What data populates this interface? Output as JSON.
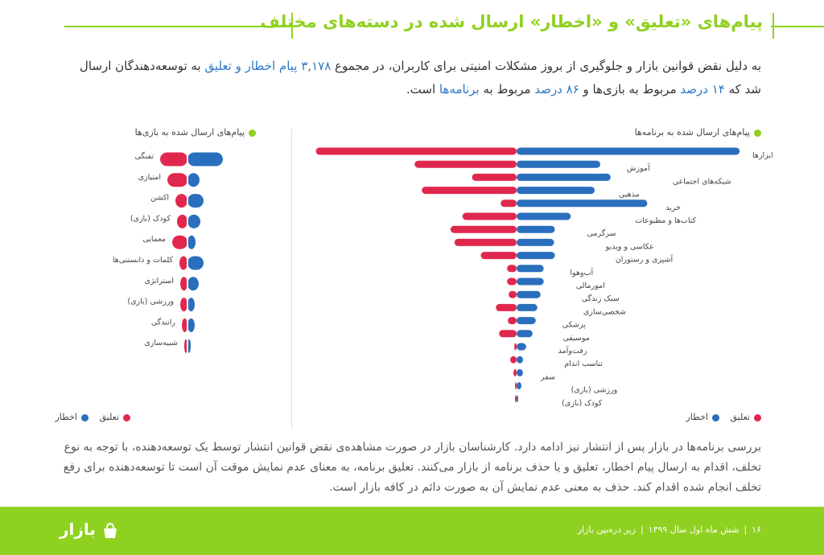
{
  "title": "پیام‌های «تعلیق» و «اخطار» ارسال شده در دسته‌های مختلف",
  "intro": {
    "p1": "به دلیل نقض قوانین بازار و جلوگیری از بروز مشکلات امنیتی برای کاربران، در مجموع ",
    "h1": "۳,۱۷۸ پیام اخطار و تعلیق",
    "p2": " به توسعه‌دهندگان ارسال شد که ",
    "h2": "۱۴ درصد",
    "p3": " مربوط به بازی‌ها و ",
    "h3": "۸۶ درصد",
    "p4": " مربوط به ",
    "h4": "برنامه‌ها",
    "p5": " است."
  },
  "colors": {
    "warning": "#2a6fbd",
    "suspension": "#e0284f",
    "accent": "#8fd120"
  },
  "chart_data": [
    {
      "type": "bar",
      "title": "پیام‌های ارسال شده به برنامه‌ها",
      "legend": [
        "تعلیق",
        "اخطار"
      ],
      "categories": [
        "ابزارها",
        "آموزش",
        "شبکه‌های اجتماعی",
        "مذهبی",
        "خرید",
        "کتاب‌ها و مطبوعات",
        "سرگرمی",
        "عکاسی و ویدیو",
        "آشپزی و رستوران",
        "آب‌وهوا",
        "امورمالی",
        "سبک زندگی",
        "شخصی‌سازی",
        "پزشکی",
        "موسیقی",
        "رفت‌وآمد",
        "تناسب اندام",
        "سفر",
        "ورزشی (بازی)",
        "کودک (بازی)"
      ],
      "series": [
        {
          "name": "اخطار",
          "values": [
            280,
            105,
            118,
            98,
            164,
            68,
            48,
            47,
            48,
            34,
            34,
            30,
            26,
            24,
            20,
            12,
            8,
            8,
            6,
            1
          ]
        },
        {
          "name": "تعلیق",
          "values": [
            252,
            128,
            56,
            119,
            20,
            68,
            83,
            78,
            45,
            12,
            12,
            10,
            26,
            11,
            22,
            3,
            8,
            4,
            2,
            1
          ]
        }
      ]
    },
    {
      "type": "bar",
      "title": "پیام‌های ارسال شده به بازی‌ها",
      "legend": [
        "تعلیق",
        "اخطار"
      ],
      "categories": [
        "تفنگی",
        "امتیازی",
        "اکشن",
        "کودک (بازی)",
        "معمایی",
        "کلمات و دانستنی‌ها",
        "استراتژی",
        "ورزشی (بازی)",
        "رانندگی",
        "شبیه‌سازی"
      ],
      "series": [
        {
          "name": "اخطار",
          "values": [
            44,
            15,
            20,
            16,
            10,
            20,
            14,
            9,
            9,
            4
          ]
        },
        {
          "name": "تعلیق",
          "values": [
            34,
            25,
            15,
            13,
            19,
            10,
            9,
            9,
            7,
            4
          ]
        }
      ]
    }
  ],
  "outro": "بررسی برنامه‌ها در بازار پس از انتشار نیز ادامه دارد. کارشناسان بازار در صورت مشاهده‌ی نقض قوانین انتشار توسط یک توسعه‌دهنده، با توجه به نوع تخلف، اقدام به ارسال پیام اخطار، تعلیق و یا حذف برنامه از بازار می‌کنند. تعلیق برنامه، به معنای عدم نمایش موقت آن است تا توسعه‌دهنده برای رفع تخلف انجام شده اقدام کند. حذف به معنی عدم نمایش آن به صورت دائم در کافه بازار است.",
  "footer": {
    "page": "۱۶",
    "period": "شش ماه اول سال ۱۳۹۹",
    "report": "زیر ذره‌بین بازار",
    "sep": "|",
    "logo": "بازار"
  }
}
